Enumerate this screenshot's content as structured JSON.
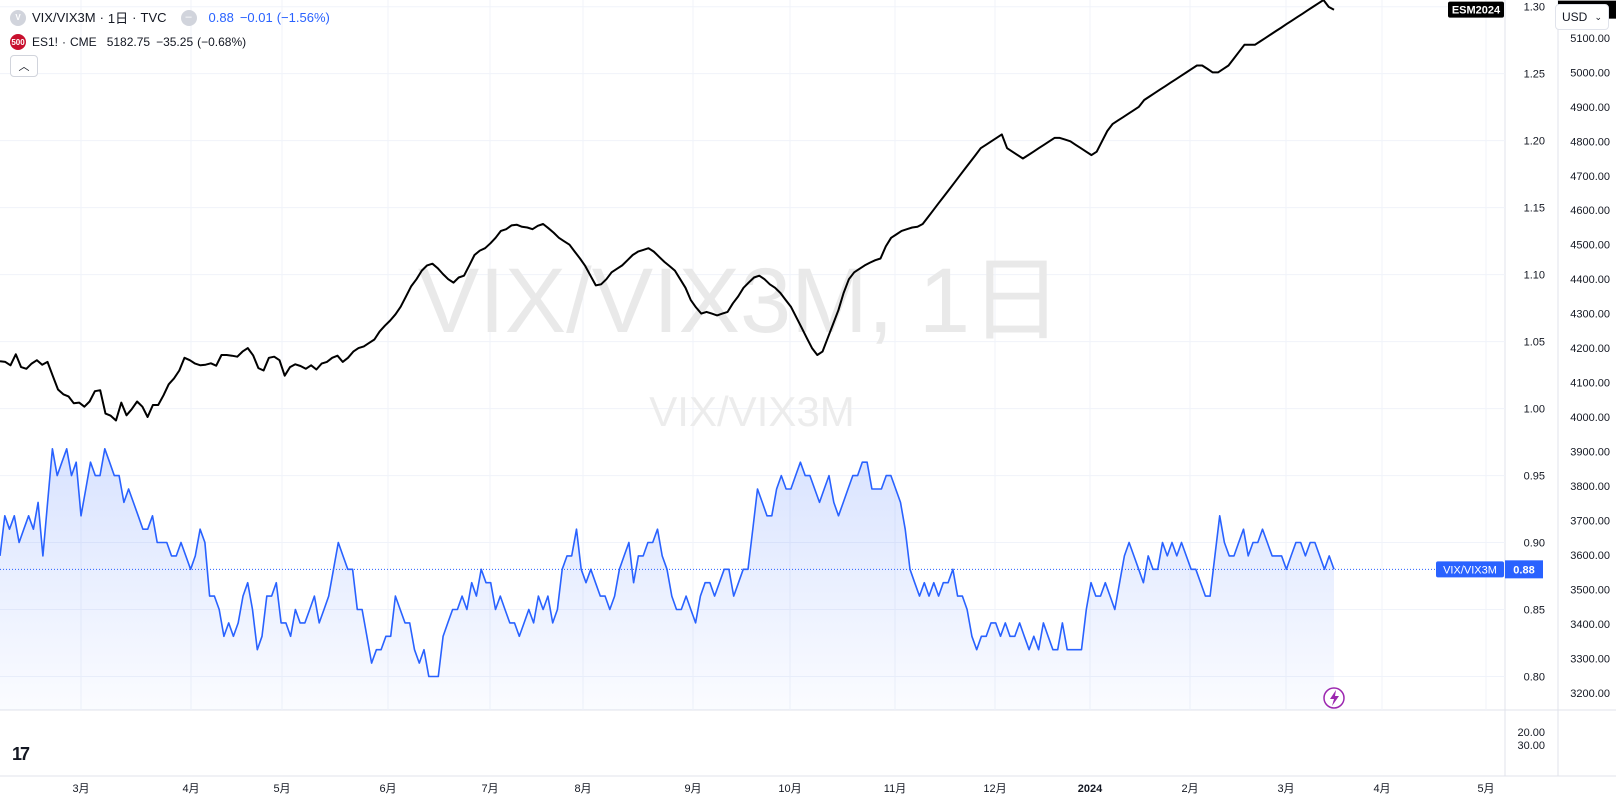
{
  "header": {
    "main_symbol": "VIX/VIX3M",
    "main_interval": "1日",
    "main_exchange": "TVC",
    "main_value": "0.88",
    "main_change": "−0.01",
    "main_change_pct": "(−1.56%)",
    "compare_badge": "500",
    "compare_symbol": "ES1!",
    "compare_exchange": "CME",
    "compare_value": "5182.75",
    "compare_change": "−35.25",
    "compare_change_pct": "(−0.68%)",
    "currency": "USD",
    "sep": "·"
  },
  "watermark": {
    "large": "VIX/VIX3M, 1日",
    "small": "VIX/VIX3M"
  },
  "colors": {
    "main_line": "#2962ff",
    "compare_line": "#000000",
    "grid": "#f0f3fa",
    "axis_text": "#131722",
    "label_bg_dark": "#000000",
    "label_bg_blue": "#2962ff"
  },
  "chart_data": [
    {
      "type": "line",
      "x_axis": {
        "tick_labels": [
          "3月",
          "4月",
          "5月",
          "6月",
          "7月",
          "8月",
          "9月",
          "10月",
          "11月",
          "12月",
          "2024",
          "2月",
          "3月",
          "4月",
          "5月"
        ]
      },
      "left_scale": {
        "ticks": [
          1.3,
          1.25,
          1.2,
          1.15,
          1.1,
          1.05,
          1.0,
          0.95,
          0.9,
          0.85,
          0.8
        ],
        "range": [
          0.775,
          1.305
        ]
      },
      "right_scale": {
        "ticks": [
          5200,
          5100,
          5000,
          4900,
          4800,
          4700,
          4600,
          4500,
          4400,
          4300,
          4200,
          4100,
          4000,
          3900,
          3800,
          3700,
          3600,
          3500,
          3400,
          3300,
          3200
        ],
        "range": [
          3150,
          5210
        ]
      },
      "series": [
        {
          "name": "VIX/VIX3M",
          "axis": "left",
          "last_label": "0.88",
          "values": [
            0.89,
            0.92,
            0.91,
            0.92,
            0.9,
            0.91,
            0.92,
            0.91,
            0.93,
            0.89,
            0.93,
            0.97,
            0.95,
            0.96,
            0.97,
            0.95,
            0.96,
            0.92,
            0.94,
            0.96,
            0.95,
            0.95,
            0.97,
            0.96,
            0.95,
            0.95,
            0.93,
            0.94,
            0.93,
            0.92,
            0.91,
            0.91,
            0.92,
            0.9,
            0.9,
            0.9,
            0.89,
            0.89,
            0.9,
            0.89,
            0.88,
            0.89,
            0.91,
            0.9,
            0.86,
            0.86,
            0.85,
            0.83,
            0.84,
            0.83,
            0.84,
            0.86,
            0.87,
            0.85,
            0.82,
            0.83,
            0.86,
            0.86,
            0.87,
            0.84,
            0.84,
            0.83,
            0.85,
            0.84,
            0.84,
            0.85,
            0.86,
            0.84,
            0.85,
            0.86,
            0.88,
            0.9,
            0.89,
            0.88,
            0.88,
            0.85,
            0.85,
            0.83,
            0.81,
            0.82,
            0.82,
            0.83,
            0.83,
            0.86,
            0.85,
            0.84,
            0.84,
            0.82,
            0.81,
            0.82,
            0.8,
            0.8,
            0.8,
            0.83,
            0.84,
            0.85,
            0.85,
            0.86,
            0.85,
            0.87,
            0.86,
            0.88,
            0.87,
            0.87,
            0.85,
            0.86,
            0.85,
            0.84,
            0.84,
            0.83,
            0.84,
            0.85,
            0.84,
            0.86,
            0.85,
            0.86,
            0.84,
            0.85,
            0.88,
            0.89,
            0.89,
            0.91,
            0.88,
            0.87,
            0.88,
            0.87,
            0.86,
            0.86,
            0.85,
            0.86,
            0.88,
            0.89,
            0.9,
            0.87,
            0.89,
            0.89,
            0.9,
            0.9,
            0.91,
            0.89,
            0.88,
            0.86,
            0.85,
            0.85,
            0.86,
            0.85,
            0.84,
            0.86,
            0.87,
            0.87,
            0.86,
            0.87,
            0.88,
            0.88,
            0.86,
            0.87,
            0.88,
            0.88,
            0.91,
            0.94,
            0.93,
            0.92,
            0.92,
            0.94,
            0.95,
            0.94,
            0.94,
            0.95,
            0.96,
            0.95,
            0.95,
            0.94,
            0.93,
            0.94,
            0.95,
            0.93,
            0.92,
            0.93,
            0.94,
            0.95,
            0.95,
            0.96,
            0.96,
            0.94,
            0.94,
            0.94,
            0.95,
            0.95,
            0.94,
            0.93,
            0.91,
            0.88,
            0.87,
            0.86,
            0.87,
            0.86,
            0.87,
            0.86,
            0.87,
            0.87,
            0.88,
            0.86,
            0.86,
            0.85,
            0.83,
            0.82,
            0.83,
            0.83,
            0.84,
            0.84,
            0.83,
            0.84,
            0.83,
            0.83,
            0.84,
            0.83,
            0.82,
            0.83,
            0.82,
            0.84,
            0.83,
            0.82,
            0.82,
            0.84,
            0.82,
            0.82,
            0.82,
            0.82,
            0.85,
            0.87,
            0.86,
            0.86,
            0.87,
            0.86,
            0.85,
            0.87,
            0.89,
            0.9,
            0.89,
            0.88,
            0.87,
            0.89,
            0.88,
            0.88,
            0.9,
            0.89,
            0.9,
            0.89,
            0.9,
            0.89,
            0.88,
            0.88,
            0.87,
            0.86,
            0.86,
            0.89,
            0.92,
            0.9,
            0.89,
            0.89,
            0.9,
            0.91,
            0.89,
            0.9,
            0.9,
            0.91,
            0.9,
            0.89,
            0.89,
            0.89,
            0.88,
            0.89,
            0.9,
            0.9,
            0.89,
            0.9,
            0.9,
            0.89,
            0.88,
            0.89,
            0.88
          ]
        },
        {
          "name": "ES1!",
          "axis": "right",
          "label_name": "ESM2024",
          "last_label": "5182.75",
          "values": [
            4162,
            4160,
            4150,
            4182,
            4145,
            4140,
            4155,
            4165,
            4152,
            4160,
            4120,
            4080,
            4066,
            4060,
            4040,
            4042,
            4030,
            4045,
            4075,
            4078,
            4010,
            4004,
            3990,
            4042,
            4005,
            4023,
            4045,
            4030,
            4000,
            4035,
            4035,
            4063,
            4095,
            4112,
            4135,
            4172,
            4165,
            4155,
            4150,
            4152,
            4156,
            4149,
            4180,
            4180,
            4178,
            4175,
            4190,
            4200,
            4179,
            4142,
            4135,
            4172,
            4175,
            4165,
            4120,
            4145,
            4153,
            4148,
            4140,
            4150,
            4138,
            4155,
            4160,
            4172,
            4178,
            4160,
            4172,
            4190,
            4200,
            4205,
            4215,
            4225,
            4248,
            4265,
            4280,
            4298,
            4320,
            4350,
            4380,
            4400,
            4425,
            4440,
            4445,
            4432,
            4415,
            4400,
            4390,
            4405,
            4410,
            4440,
            4470,
            4483,
            4490,
            4504,
            4520,
            4540,
            4545,
            4556,
            4558,
            4552,
            4550,
            4545,
            4555,
            4560,
            4548,
            4535,
            4520,
            4510,
            4500,
            4480,
            4460,
            4438,
            4410,
            4382,
            4385,
            4400,
            4420,
            4430,
            4440,
            4455,
            4470,
            4480,
            4485,
            4490,
            4480,
            4465,
            4450,
            4438,
            4425,
            4400,
            4375,
            4340,
            4318,
            4300,
            4305,
            4300,
            4295,
            4300,
            4305,
            4330,
            4350,
            4375,
            4390,
            4405,
            4410,
            4400,
            4385,
            4375,
            4360,
            4340,
            4320,
            4290,
            4260,
            4230,
            4200,
            4180,
            4190,
            4230,
            4270,
            4310,
            4360,
            4400,
            4420,
            4430,
            4440,
            4448,
            4455,
            4460,
            4495,
            4520,
            4530,
            4540,
            4545,
            4550,
            4552,
            4560,
            4580,
            4600,
            4620,
            4640,
            4660,
            4680,
            4700,
            4720,
            4740,
            4760,
            4780,
            4790,
            4800,
            4810,
            4820,
            4780,
            4770,
            4760,
            4750,
            4760,
            4770,
            4780,
            4790,
            4800,
            4810,
            4810,
            4805,
            4800,
            4790,
            4780,
            4770,
            4760,
            4770,
            4800,
            4830,
            4850,
            4860,
            4870,
            4880,
            4890,
            4900,
            4920,
            4930,
            4940,
            4950,
            4960,
            4970,
            4980,
            4990,
            5000,
            5010,
            5020,
            5020,
            5010,
            5000,
            5000,
            5010,
            5020,
            5040,
            5060,
            5080,
            5080,
            5080,
            5090,
            5100,
            5110,
            5120,
            5130,
            5140,
            5150,
            5160,
            5170,
            5180,
            5190,
            5200,
            5210,
            5190,
            5182
          ]
        }
      ]
    },
    {
      "type": "line",
      "y_axis": {
        "ticks": [
          20.0,
          30.0
        ]
      },
      "series": []
    }
  ]
}
